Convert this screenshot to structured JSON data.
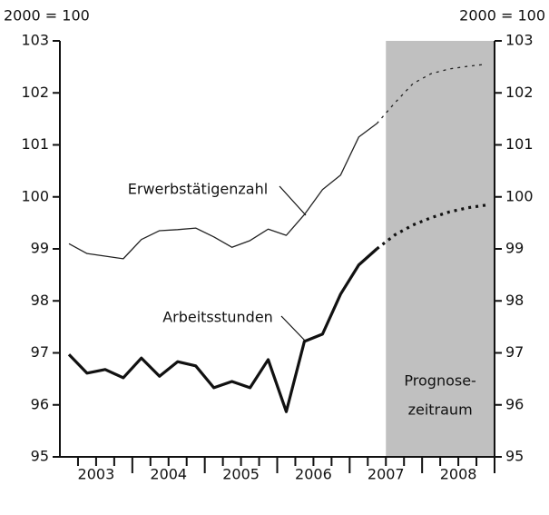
{
  "chart_data": {
    "type": "line",
    "y_axis_label": "2000 = 100",
    "y2_axis_label": "2000 = 100",
    "x": [
      2003.125,
      2003.375,
      2003.625,
      2003.875,
      2004.125,
      2004.375,
      2004.625,
      2004.875,
      2005.125,
      2005.375,
      2005.625,
      2005.875,
      2006.125,
      2006.375,
      2006.625,
      2006.875,
      2007.125,
      2007.375,
      2007.625,
      2007.875,
      2008.125,
      2008.375,
      2008.625,
      2008.875
    ],
    "xlim": [
      2003,
      2009
    ],
    "xticks": [
      {
        "value": 2003.5,
        "label": "2003"
      },
      {
        "value": 2004.5,
        "label": "2004"
      },
      {
        "value": 2005.5,
        "label": "2005"
      },
      {
        "value": 2006.5,
        "label": "2006"
      },
      {
        "value": 2007.5,
        "label": "2007"
      },
      {
        "value": 2008.5,
        "label": "2008"
      }
    ],
    "ylim": [
      95,
      103
    ],
    "yticks": [
      95,
      96,
      97,
      98,
      99,
      100,
      101,
      102,
      103
    ],
    "y2lim": [
      95,
      103
    ],
    "y2ticks": [
      95,
      96,
      97,
      98,
      99,
      100,
      101,
      102,
      103
    ],
    "shade": {
      "from": 2007.5,
      "to": 2009,
      "color": "#c0c0c0",
      "label": [
        "Prognose-",
        "zeitraum"
      ]
    },
    "series": [
      {
        "name": "Erwerbstätigenzahl",
        "color": "#222222",
        "width": 1.3,
        "values": [
          99.1,
          98.91,
          98.86,
          98.81,
          99.18,
          99.35,
          99.37,
          99.4,
          99.23,
          99.03,
          99.16,
          99.38,
          99.26,
          99.66,
          100.14,
          100.42,
          101.15,
          101.41,
          101.81,
          102.18,
          102.37,
          102.46,
          102.51,
          102.55
        ]
      },
      {
        "name": "Arbeitsstunden",
        "color": "#111111",
        "width": 3.2,
        "values": [
          96.97,
          96.61,
          96.68,
          96.52,
          96.9,
          96.55,
          96.83,
          96.75,
          96.33,
          96.45,
          96.33,
          96.87,
          95.87,
          97.22,
          97.36,
          98.13,
          98.69,
          99.0,
          99.27,
          99.46,
          99.6,
          99.71,
          99.79,
          99.84
        ]
      }
    ]
  }
}
